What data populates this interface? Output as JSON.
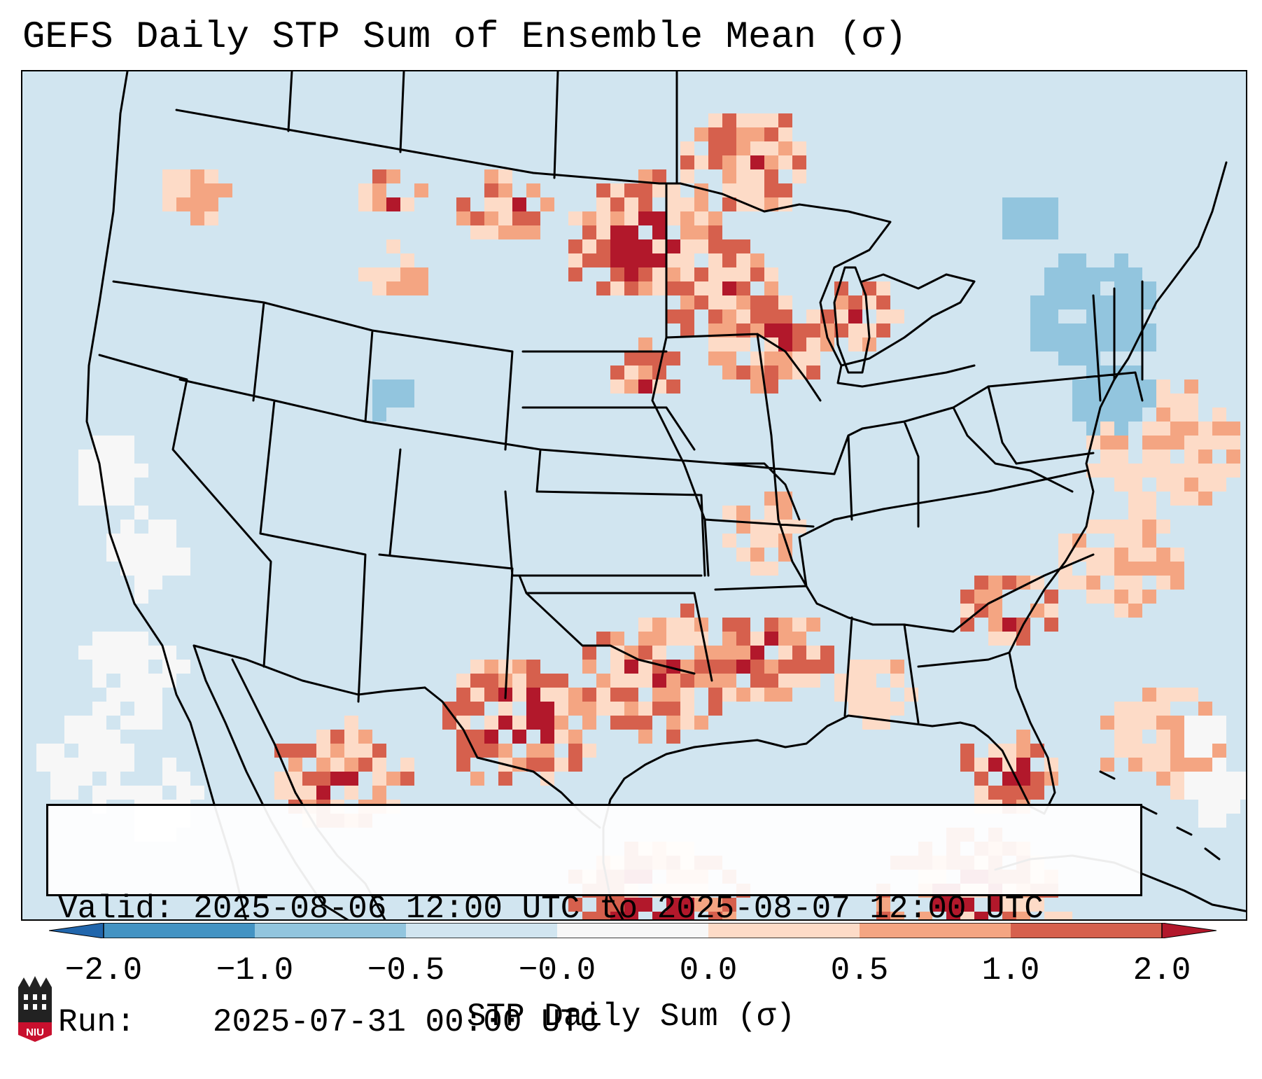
{
  "title": "GEFS Daily STP Sum of Ensemble Mean (σ)",
  "info": {
    "valid_label": "Valid:",
    "valid_value": "2025-08-06 12:00 UTC to 2025-08-07 12:00 UTC",
    "run_label": "Run:",
    "run_value": "2025-07-31 00:00 UTC"
  },
  "colorbar": {
    "label": "STP Daily Sum (σ)",
    "ticks": [
      "−2.0",
      "−1.0",
      "−0.5",
      "−0.0",
      "0.0",
      "0.5",
      "1.0",
      "2.0"
    ],
    "colors": {
      "under": "#2166ac",
      "b1": "#4393c3",
      "b2": "#92c5de",
      "b3": "#d1e5f0",
      "b4": "#f7f7f7",
      "b5": "#fddbc7",
      "b6": "#f4a582",
      "b7": "#d6604d",
      "over": "#b2182b"
    }
  },
  "logo": {
    "text": "NIU"
  },
  "icons": {
    "logo": "university-tower-icon"
  }
}
